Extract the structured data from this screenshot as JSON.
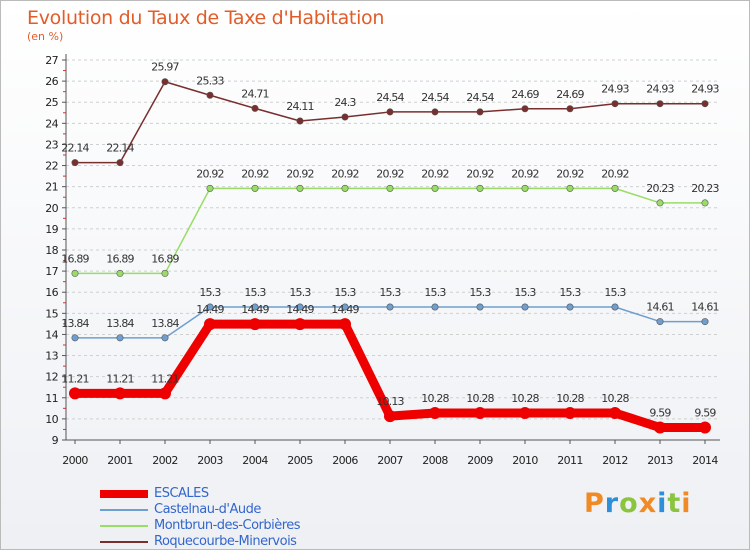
{
  "header": {
    "title": "Evolution du Taux de Taxe d'Habitation",
    "unit": "(en %)"
  },
  "logo": {
    "text": "Proxiti",
    "colors": [
      "#f08a24",
      "#2c8fd8",
      "#8bc43f"
    ]
  },
  "chart_data": {
    "type": "line",
    "title": "Evolution du Taux de Taxe d'Habitation",
    "ylabel": "(en %)",
    "xlabel": "",
    "x": [
      "2000",
      "2001",
      "2002",
      "2003",
      "2004",
      "2005",
      "2006",
      "2007",
      "2008",
      "2009",
      "2010",
      "2011",
      "2012",
      "2013",
      "2014"
    ],
    "ylim": [
      9,
      27
    ],
    "yticks": [
      "9",
      "10",
      "11",
      "12",
      "13",
      "14",
      "15",
      "16",
      "17",
      "18",
      "19",
      "20",
      "21",
      "22",
      "23",
      "24",
      "25",
      "26",
      "27"
    ],
    "grid": "horizontal dashed",
    "legend_position": "bottom-left",
    "series": [
      {
        "name": "ESCALES",
        "color": "#ee0000",
        "values": [
          11.21,
          11.21,
          11.21,
          14.49,
          14.49,
          14.49,
          14.49,
          10.13,
          10.28,
          10.28,
          10.28,
          10.28,
          10.28,
          9.59,
          9.59
        ],
        "labels": [
          "11.21",
          "11.21",
          "11.21",
          "14.49",
          "14.49",
          "14.49",
          "14.49",
          "10.13",
          "10.28",
          "10.28",
          "10.28",
          "10.28",
          "10.28",
          "9.59",
          "9.59"
        ]
      },
      {
        "name": "Castelnau-d'Aude",
        "color": "#6f9fcf",
        "values": [
          13.84,
          13.84,
          13.84,
          15.3,
          15.3,
          15.3,
          15.3,
          15.3,
          15.3,
          15.3,
          15.3,
          15.3,
          15.3,
          14.61,
          14.61
        ],
        "labels": [
          "13.84",
          "13.84",
          "13.84",
          "15.3",
          "15.3",
          "15.3",
          "15.3",
          "15.3",
          "15.3",
          "15.3",
          "15.3",
          "15.3",
          "15.3",
          "14.61",
          "14.61"
        ]
      },
      {
        "name": "Montbrun-des-Corbières",
        "color": "#99dd66",
        "values": [
          16.89,
          16.89,
          16.89,
          20.92,
          20.92,
          20.92,
          20.92,
          20.92,
          20.92,
          20.92,
          20.92,
          20.92,
          20.92,
          20.23,
          20.23
        ],
        "labels": [
          "16.89",
          "16.89",
          "16.89",
          "20.92",
          "20.92",
          "20.92",
          "20.92",
          "20.92",
          "20.92",
          "20.92",
          "20.92",
          "20.92",
          "20.92",
          "20.23",
          "20.23"
        ]
      },
      {
        "name": "Roquecourbe-Minervois",
        "color": "#7a2e2e",
        "values": [
          22.14,
          22.14,
          25.97,
          25.33,
          24.71,
          24.11,
          24.3,
          24.54,
          24.54,
          24.54,
          24.69,
          24.69,
          24.93,
          24.93,
          24.93
        ],
        "labels": [
          "22.14",
          "22.14",
          "25.97",
          "25.33",
          "24.71",
          "24.11",
          "24.3",
          "24.54",
          "24.54",
          "24.54",
          "24.69",
          "24.69",
          "24.93",
          "24.93",
          "24.93"
        ]
      }
    ]
  }
}
